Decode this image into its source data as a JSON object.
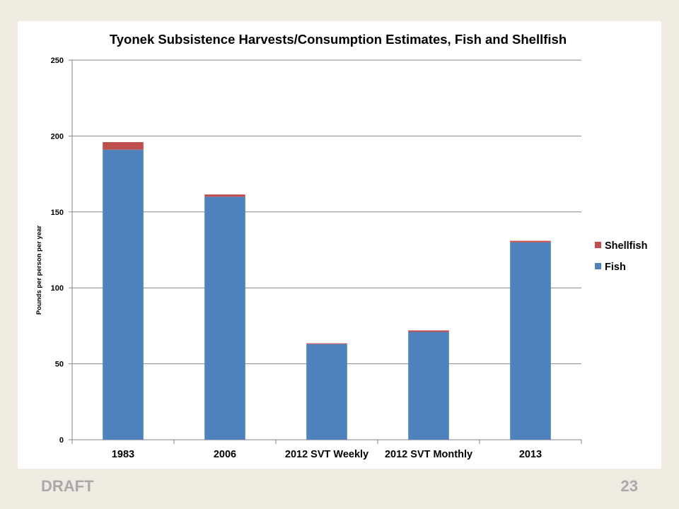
{
  "footer": {
    "left": "DRAFT",
    "page": "23"
  },
  "chart_data": {
    "type": "bar",
    "stacked": true,
    "title": "Tyonek Subsistence Harvests/Consumption Estimates, Fish and Shellfish",
    "xlabel": "",
    "ylabel": "Pounds per person per year",
    "ylim": [
      0,
      250
    ],
    "yticks": [
      0,
      50,
      100,
      150,
      200,
      250
    ],
    "categories": [
      "1983",
      "2006",
      "2012 SVT Weekly",
      "2012 SVT Monthly",
      "2013"
    ],
    "series": [
      {
        "name": "Fish",
        "color": "#4f81bd",
        "values": [
          191,
          160,
          63,
          71,
          130
        ]
      },
      {
        "name": "Shellfish",
        "color": "#c0504d",
        "values": [
          5,
          1.5,
          0.5,
          1,
          1
        ]
      }
    ],
    "grid": true,
    "legend": "right"
  }
}
